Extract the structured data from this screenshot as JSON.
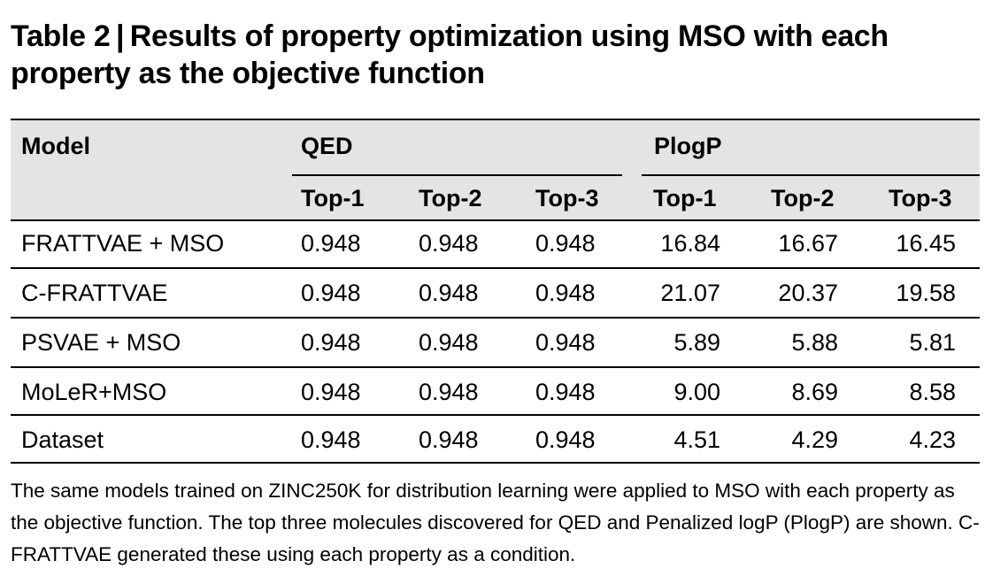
{
  "title": "Table 2 | Results of property optimization using MSO with each property as the objective function",
  "table": {
    "header": {
      "model": "Model",
      "group_qed": "QED",
      "group_plogp": "PlogP",
      "sub": [
        "Top-1",
        "Top-2",
        "Top-3",
        "Top-1",
        "Top-2",
        "Top-3"
      ]
    },
    "rows": [
      {
        "model": "FRATTVAE + MSO",
        "values": [
          "0.948",
          "0.948",
          "0.948",
          "16.84",
          "16.67",
          "16.45"
        ]
      },
      {
        "model": "C-FRATTVAE",
        "values": [
          "0.948",
          "0.948",
          "0.948",
          "21.07",
          "20.37",
          "19.58"
        ]
      },
      {
        "model": "PSVAE + MSO",
        "values": [
          "0.948",
          "0.948",
          "0.948",
          "5.89",
          "5.88",
          "5.81"
        ]
      },
      {
        "model": "MoLeR+MSO",
        "values": [
          "0.948",
          "0.948",
          "0.948",
          "9.00",
          "8.69",
          "8.58"
        ]
      },
      {
        "model": "Dataset",
        "values": [
          "0.948",
          "0.948",
          "0.948",
          "4.51",
          "4.29",
          "4.23"
        ]
      }
    ]
  },
  "caption": "The same models trained on ZINC250K for distribution learning were applied to MSO with each property as the objective function. The top three molecules discovered for QED and Penalized logP (PlogP) are shown. C-FRATTVAE generated these using each property as a condition."
}
